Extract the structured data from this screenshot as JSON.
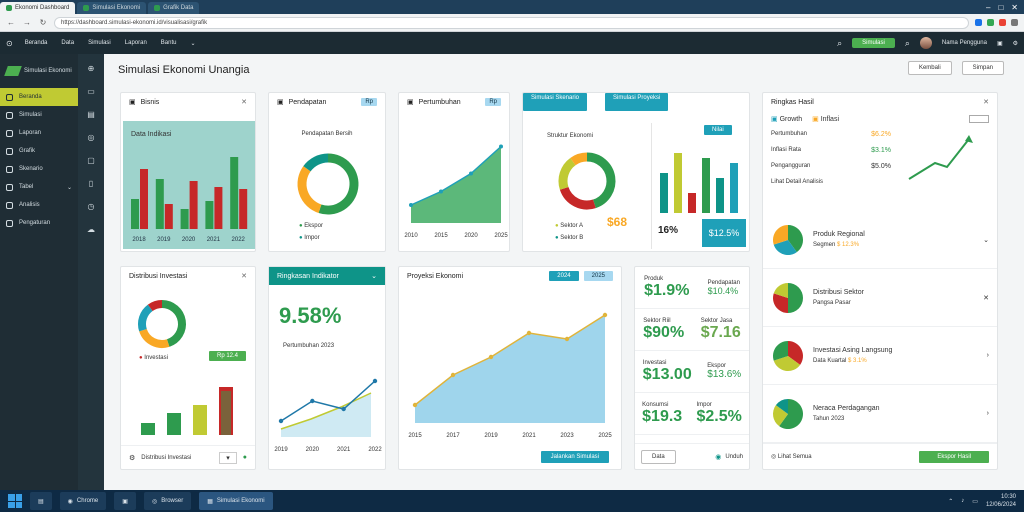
{
  "browser": {
    "tabs": [
      {
        "label": "Ekonomi Dashboard"
      },
      {
        "label": "Simulasi Ekonomi"
      },
      {
        "label": "Grafik Data"
      }
    ],
    "url": "https://dashboard.simulasi-ekonomi.id/visualisasi/grafik"
  },
  "appbar": {
    "menu": [
      "Beranda",
      "Data",
      "Simulasi",
      "Laporan",
      "Bantu"
    ],
    "action_label": "Simulasi",
    "user_name": "Nama Pengguna"
  },
  "sidebar": {
    "logo_text": "Simulasi Ekonomi",
    "items": [
      "Beranda",
      "Simulasi",
      "Laporan",
      "Grafik",
      "Skenario",
      "Tabel",
      "Analisis",
      "Pengaturan"
    ]
  },
  "page": {
    "title": "Simulasi Ekonomi Unangia",
    "actions": [
      "Kembali",
      "Simpan"
    ]
  },
  "cards": {
    "bar_card": {
      "title": "Bisnis",
      "subtitle": "Data Indikasi",
      "ticks": [
        "2018",
        "2019",
        "2020",
        "2021",
        "2022"
      ]
    },
    "donut1": {
      "title": "Pendapatan",
      "badge": "Rp",
      "subtitle": "Pendapatan Bersih",
      "legend": [
        "Ekspor",
        "Impor"
      ]
    },
    "area1": {
      "title": "Pertumbuhan",
      "badge": "Rp",
      "ticks": [
        "2010",
        "2015",
        "2020",
        "2025"
      ]
    },
    "combo": {
      "chip1": "Simulasi Skenario",
      "chip2": "Simulasi Proyeksi",
      "subtitle": "Struktur Ekonomi",
      "badge_label": "Nilai",
      "legend": [
        "Sektor A",
        "Sektor B"
      ],
      "value1": "$68",
      "value2": "16%",
      "value3": "$12.5%"
    },
    "right_panel": {
      "title": "Ringkas Hasil",
      "filters": [
        "Growth",
        "Inflasi"
      ],
      "stats": [
        {
          "label": "Pertumbuhan",
          "value": "$6.2%"
        },
        {
          "label": "Inflasi Rata",
          "value": "$3.1%"
        },
        {
          "label": "Pengangguran",
          "value": "$5.0%"
        }
      ],
      "footer": "Lihat Detail Analisis",
      "items": [
        {
          "title": "Produk Regional",
          "meta": "Segmen",
          "badge": "$ 12.3%"
        },
        {
          "title": "Distribusi Sektor",
          "meta": "Pangsa Pasar",
          "badge": ""
        },
        {
          "title": "Investasi Asing Langsung",
          "meta": "Data Kuartal",
          "badge": "$ 3.1%"
        },
        {
          "title": "Neraca Perdagangan",
          "meta": "Tahun 2023",
          "badge": ""
        }
      ],
      "action_button": "Ekspor Hasil",
      "secondary": "Lihat Semua"
    },
    "donut2": {
      "title": "Distribusi Investasi",
      "legend": "Investasi",
      "chip": "Rp 12.4"
    },
    "kpi_teal": {
      "title": "Ringkasan Indikator",
      "value": "9.58%",
      "caption": "Pertumbuhan 2023",
      "ticks": [
        "2019",
        "2020",
        "2021",
        "2022"
      ]
    },
    "big_area": {
      "title": "Proyeksi Ekonomi",
      "chip1": "2024",
      "chip2": "2025",
      "ticks": [
        "2015",
        "2017",
        "2019",
        "2021",
        "2023",
        "2025"
      ],
      "button": "Jalankan Simulasi"
    },
    "kpi_grid": {
      "rows": [
        {
          "label1": "Produk",
          "v1": "$1.9%",
          "label2": "Pendapatan",
          "v2": "$10.4%"
        },
        {
          "label1": "Sektor Riil",
          "v1": "$90%",
          "label2": "Sektor Jasa",
          "v2": "$7.16"
        },
        {
          "label1": "Investasi",
          "v1": "$13.00",
          "label2": "Ekspor",
          "v2": "$13.6%"
        },
        {
          "label1": "Konsumsi",
          "v1": "$19.3",
          "label2": "Impor",
          "v2": "$2.5%"
        }
      ],
      "footer_left": "Data",
      "footer_right": "Unduh"
    }
  },
  "taskbar": {
    "items": [
      "Chrome",
      "Explorer",
      "Office",
      "Browser",
      "Simulasi Ekonomi"
    ],
    "time": "10:30",
    "date": "12/06/2024"
  },
  "chart_data": [
    {
      "type": "bar",
      "categories": [
        "2018",
        "2019",
        "2020",
        "2021",
        "2022"
      ],
      "series": [
        {
          "values": [
            30,
            50,
            20,
            28,
            72
          ]
        },
        {
          "values": [
            60,
            25,
            48,
            42,
            40
          ]
        }
      ]
    },
    {
      "type": "pie",
      "values": [
        55,
        30,
        15
      ]
    },
    {
      "type": "area",
      "x": [
        "2010",
        "2015",
        "2020",
        "2025"
      ],
      "values": [
        20,
        35,
        55,
        85
      ]
    },
    {
      "type": "pie",
      "values": [
        45,
        25,
        20,
        10
      ]
    },
    {
      "type": "line",
      "x": [
        "2019",
        "2020",
        "2021",
        "2022"
      ],
      "values": [
        20,
        45,
        35,
        70
      ]
    },
    {
      "type": "area",
      "x": [
        "2015",
        "2017",
        "2019",
        "2021",
        "2023",
        "2025"
      ],
      "values": [
        15,
        40,
        55,
        75,
        70,
        90
      ]
    }
  ],
  "colors": {
    "green": "#2e9b4e",
    "teal": "#0e9488",
    "olive": "#c0ca33",
    "blue": "#1fa0b8",
    "red": "#c62828",
    "orange": "#f9a825"
  }
}
